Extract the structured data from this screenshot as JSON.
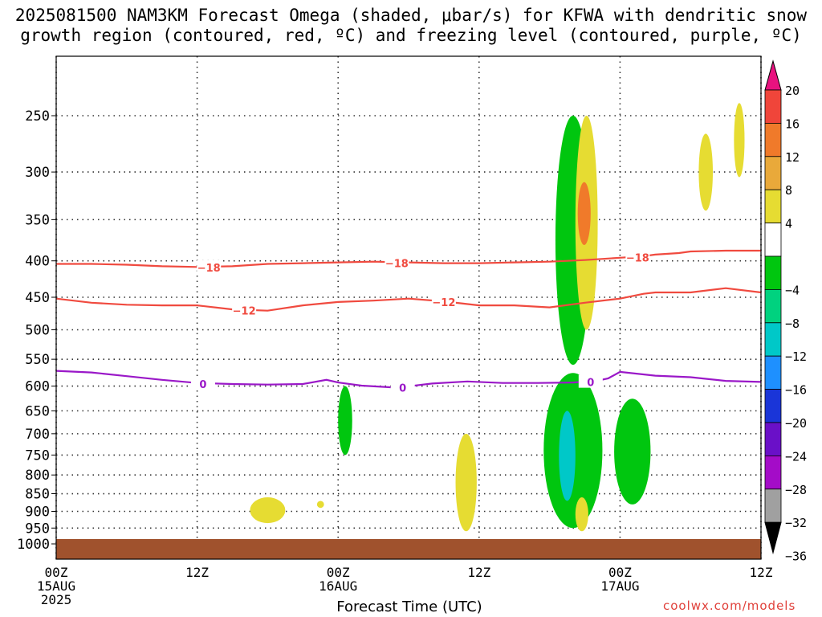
{
  "title": {
    "line1": "2025081500 NAM3KM Forecast Omega (shaded, μbar/s) for KFWA with dendritic snow",
    "line2": "growth region (contoured, red, ºC) and freezing level (contoured, purple, ºC)"
  },
  "xlabel": "Forecast Time (UTC)",
  "credit": "coolwx.com/models",
  "colors": {
    "temp_contour": "#f04a3f",
    "freezing_contour": "#9a18c8",
    "ground": "#a0522d"
  },
  "chart_data": {
    "type": "heatmap",
    "title": "2025081500 NAM3KM Forecast Omega (shaded, μbar/s) for KFWA with dendritic snow growth region (contoured, red, ºC) and freezing level (contoured, purple, ºC)",
    "xlabel": "Forecast Time (UTC)",
    "ylabel": "",
    "y_scale": "log-pressure",
    "y_inverted": true,
    "xlim_hours": [
      0,
      60
    ],
    "y_ticks": [
      250,
      300,
      350,
      400,
      450,
      500,
      550,
      600,
      650,
      700,
      750,
      800,
      850,
      900,
      950,
      1000
    ],
    "x_ticks": [
      {
        "hour": 0,
        "line1": "00Z",
        "line2": "15AUG",
        "line3": "2025"
      },
      {
        "hour": 12,
        "line1": "12Z",
        "line2": "",
        "line3": ""
      },
      {
        "hour": 24,
        "line1": "00Z",
        "line2": "16AUG",
        "line3": ""
      },
      {
        "hour": 36,
        "line1": "12Z",
        "line2": "",
        "line3": ""
      },
      {
        "hour": 48,
        "line1": "00Z",
        "line2": "17AUG",
        "line3": ""
      },
      {
        "hour": 60,
        "line1": "12Z",
        "line2": "",
        "line3": ""
      }
    ],
    "colorbar": {
      "labels": [
        "20",
        "16",
        "12",
        "8",
        "4",
        "−4",
        "−8",
        "−12",
        "−16",
        "−20",
        "−24",
        "−28",
        "−32",
        "−36"
      ],
      "bins": [
        {
          "from": 20,
          "to": 100,
          "color": "#e8127f"
        },
        {
          "from": 16,
          "to": 20,
          "color": "#f0453a"
        },
        {
          "from": 12,
          "to": 16,
          "color": "#f07a2a"
        },
        {
          "from": 8,
          "to": 12,
          "color": "#e9a93a"
        },
        {
          "from": 4,
          "to": 8,
          "color": "#e6dc32"
        },
        {
          "from": -4,
          "to": 4,
          "color": "#ffffff"
        },
        {
          "from": -8,
          "to": -4,
          "color": "#00c60f"
        },
        {
          "from": -12,
          "to": -8,
          "color": "#00d27f"
        },
        {
          "from": -16,
          "to": -12,
          "color": "#00c8c8"
        },
        {
          "from": -20,
          "to": -16,
          "color": "#1e90ff"
        },
        {
          "from": -24,
          "to": -20,
          "color": "#1a35d8"
        },
        {
          "from": -28,
          "to": -24,
          "color": "#6a10c8"
        },
        {
          "from": -32,
          "to": -28,
          "color": "#a40cc8"
        },
        {
          "from": -36,
          "to": -32,
          "color": "#a0a0a0"
        },
        {
          "from": -100,
          "to": -36,
          "color": "#000000"
        }
      ]
    },
    "contours": [
      {
        "label": "-18",
        "color": "#f04a3f",
        "x": [
          0,
          3,
          6,
          9,
          12,
          15,
          18,
          21,
          24,
          27,
          30,
          33,
          36,
          39,
          42,
          45,
          48,
          50,
          51,
          53,
          54,
          57,
          60
        ],
        "y": [
          404,
          404,
          405,
          407,
          408,
          407,
          404,
          403,
          402,
          401,
          402,
          403,
          403,
          402,
          401,
          399,
          396,
          394,
          392,
          390,
          388,
          387,
          387
        ]
      },
      {
        "label": "-12",
        "color": "#f04a3f",
        "x": [
          0,
          3,
          6,
          9,
          12,
          15,
          18,
          21,
          24,
          27,
          30,
          33,
          36,
          39,
          42,
          45,
          48,
          50,
          51,
          53,
          54,
          57,
          60
        ],
        "y": [
          452,
          458,
          461,
          462,
          462,
          468,
          470,
          462,
          457,
          455,
          452,
          456,
          462,
          462,
          465,
          458,
          452,
          445,
          443,
          443,
          443,
          437,
          443
        ]
      },
      {
        "label": "0",
        "color": "#9a18c8",
        "x": [
          0,
          3,
          6,
          9,
          12,
          15,
          18,
          21,
          23,
          24,
          26,
          29,
          32,
          35,
          38,
          41,
          44,
          46,
          47,
          48,
          51,
          54,
          57,
          60
        ],
        "y": [
          571,
          574,
          581,
          588,
          594,
          596,
          597,
          596,
          588,
          593,
          599,
          603,
          595,
          591,
          594,
          594,
          593,
          590,
          585,
          573,
          580,
          583,
          590,
          592
        ]
      }
    ],
    "omega_regions": [
      {
        "band": "-8 to -4",
        "hours": [
          42.5,
          45.5
        ],
        "p": [
          250,
          560
        ]
      },
      {
        "band": "4 to 8",
        "hours": [
          44.2,
          46.1
        ],
        "p": [
          250,
          500
        ]
      },
      {
        "band": "12 to 16",
        "hours": [
          44.4,
          45.5
        ],
        "p": [
          310,
          380
        ]
      },
      {
        "band": "4 to 8",
        "hours": [
          54.7,
          55.9
        ],
        "p": [
          265,
          340
        ]
      },
      {
        "band": "4 to 8",
        "hours": [
          57.7,
          58.6
        ],
        "p": [
          240,
          305
        ]
      },
      {
        "band": "-8 to -4",
        "hours": [
          24.0,
          25.2
        ],
        "p": [
          600,
          750
        ]
      },
      {
        "band": "4 to 8",
        "hours": [
          34.0,
          35.8
        ],
        "p": [
          700,
          960
        ]
      },
      {
        "band": "-8 to -4",
        "hours": [
          41.5,
          46.5
        ],
        "p": [
          575,
          950
        ]
      },
      {
        "band": "-16 to -12",
        "hours": [
          42.8,
          44.2
        ],
        "p": [
          650,
          870
        ]
      },
      {
        "band": "4 to 8",
        "hours": [
          44.2,
          45.3
        ],
        "p": [
          860,
          960
        ]
      },
      {
        "band": "-8 to -4",
        "hours": [
          47.5,
          50.6
        ],
        "p": [
          625,
          880
        ]
      },
      {
        "band": "4 to 8",
        "hours": [
          16.5,
          19.5
        ],
        "p": [
          860,
          935
        ]
      },
      {
        "band": "4 to 8",
        "hours": [
          22.2,
          22.8
        ],
        "p": [
          870,
          890
        ]
      }
    ]
  }
}
